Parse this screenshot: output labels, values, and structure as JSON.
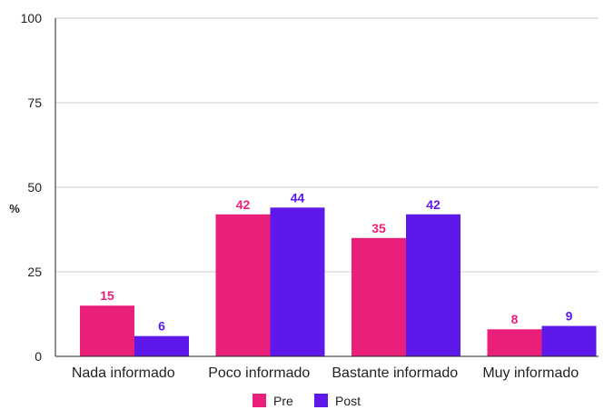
{
  "chart_data": {
    "type": "bar",
    "categories": [
      "Nada informado",
      "Poco informado",
      "Bastante informado",
      "Muy informado"
    ],
    "series": [
      {
        "name": "Pre",
        "values": [
          15,
          42,
          35,
          8
        ],
        "color": "#ea1f79"
      },
      {
        "name": "Post",
        "values": [
          6,
          44,
          42,
          9
        ],
        "color": "#5e18ea"
      }
    ],
    "ylabel": "%",
    "ylim": [
      0,
      100
    ],
    "yticks": [
      0,
      25,
      50,
      75,
      100
    ],
    "grid": true,
    "legend_position": "bottom"
  }
}
